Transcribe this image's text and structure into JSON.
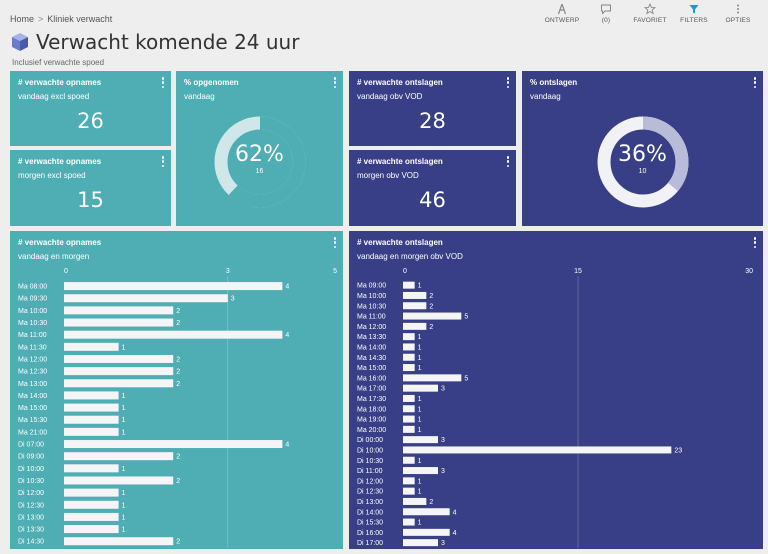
{
  "breadcrumb": {
    "home": "Home",
    "separator": ">",
    "current": "Kliniek verwacht"
  },
  "toolbar": {
    "items": [
      {
        "label": "ONTWERP",
        "icon": "design-icon"
      },
      {
        "label": "(0)",
        "icon": "comment-icon"
      },
      {
        "label": "FAVORIET",
        "icon": "star-icon"
      },
      {
        "label": "FILTERS",
        "icon": "filter-icon"
      },
      {
        "label": "OPTIES",
        "icon": "more-vertical-icon"
      }
    ],
    "accent": "#1a9ad6"
  },
  "page": {
    "title": "Verwacht komende 24 uur",
    "subtitle": "Inclusief verwachte spoed"
  },
  "colors": {
    "teal": "#4eaeb4",
    "navy": "#383f86",
    "bar": "#f5f5f7"
  },
  "kpis": {
    "opnames_vandaag": {
      "title": "# verwachte opnames",
      "subtitle": "vandaag excl spoed",
      "value": "26"
    },
    "opnames_morgen": {
      "title": "# verwachte opnames",
      "subtitle": "morgen excl spoed",
      "value": "15"
    },
    "pct_opgenomen": {
      "title": "% opgenomen",
      "subtitle": "vandaag",
      "percent": "62%",
      "count": "16",
      "fraction": 0.62
    },
    "ontslagen_vandaag": {
      "title": "# verwachte ontslagen",
      "subtitle": "vandaag obv VOD",
      "value": "28"
    },
    "ontslagen_morgen": {
      "title": "# verwachte ontslagen",
      "subtitle": "morgen obv VOD",
      "value": "46"
    },
    "pct_ontslagen": {
      "title": "% ontslagen",
      "subtitle": "vandaag",
      "percent": "36%",
      "count": "10",
      "fraction": 0.36
    }
  },
  "opnames_chart": {
    "title": "# verwachte opnames",
    "subtitle": "vandaag en morgen"
  },
  "ontslagen_chart": {
    "title": "# verwachte ontslagen",
    "subtitle": "vandaag en morgen obv VOD"
  },
  "chart_data": [
    {
      "type": "bar",
      "orientation": "horizontal",
      "title": "# verwachte opnames",
      "subtitle": "vandaag en morgen",
      "categories": [
        "Ma 08:00",
        "Ma 09:30",
        "Ma 10:00",
        "Ma 10:30",
        "Ma 11:00",
        "Ma 11:30",
        "Ma 12:00",
        "Ma 12:30",
        "Ma 13:00",
        "Ma 14:00",
        "Ma 15:00",
        "Ma 15:30",
        "Ma 21:00",
        "Di 07:00",
        "Di 09:00",
        "Di 10:00",
        "Di 10:30",
        "Di 12:00",
        "Di 12:30",
        "Di 13:00",
        "Di 13:30",
        "Di 14:30"
      ],
      "values": [
        4,
        3,
        2,
        2,
        4,
        1,
        2,
        2,
        2,
        1,
        1,
        1,
        1,
        4,
        2,
        1,
        2,
        1,
        1,
        1,
        1,
        2
      ],
      "xlim": [
        0,
        5
      ],
      "ticks": [
        0,
        3,
        5
      ],
      "tick_labels": [
        "0",
        "3",
        "5"
      ],
      "grid": true,
      "color": "#f5f5f7"
    },
    {
      "type": "bar",
      "orientation": "horizontal",
      "title": "# verwachte ontslagen",
      "subtitle": "vandaag en morgen obv VOD",
      "categories": [
        "Ma 09:00",
        "Ma 10:00",
        "Ma 10:30",
        "Ma 11:00",
        "Ma 12:00",
        "Ma 13:30",
        "Ma 14:00",
        "Ma 14:30",
        "Ma 15:00",
        "Ma 16:00",
        "Ma 17:00",
        "Ma 17:30",
        "Ma 18:00",
        "Ma 19:00",
        "Ma 20:00",
        "Di 00:00",
        "Di 10:00",
        "Di 10:30",
        "Di 11:00",
        "Di 12:00",
        "Di 12:30",
        "Di 13:00",
        "Di 14:00",
        "Di 15:30",
        "Di 16:00",
        "Di 17:00"
      ],
      "values": [
        1,
        2,
        2,
        5,
        2,
        1,
        1,
        1,
        1,
        5,
        3,
        1,
        1,
        1,
        1,
        3,
        23,
        1,
        3,
        1,
        1,
        2,
        4,
        1,
        4,
        3
      ],
      "xlim": [
        0,
        30
      ],
      "ticks": [
        0,
        15,
        30
      ],
      "tick_labels": [
        "0",
        "15",
        "30"
      ],
      "grid": true,
      "color": "#f5f5f7"
    }
  ]
}
